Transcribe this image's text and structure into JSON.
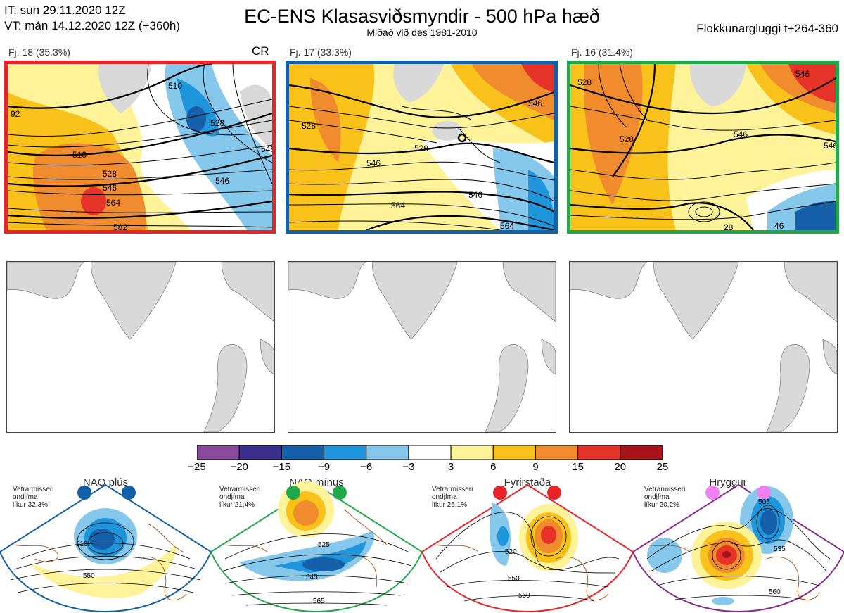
{
  "header": {
    "it_line": "IT: sun 29.11.2020 12Z",
    "vt_line": "VT: mán 14.12.2020 12Z  (+360h)",
    "title": "EC-ENS Klasasviðsmyndir - 500 hPa hæð",
    "subtitle": "Miðað við des 1981-2010",
    "window": "Flokkunargluggi t+264-360"
  },
  "clusters": [
    {
      "label": "Fj. 18 (35.3%)",
      "tag": "CR",
      "frame_color": "#e8242a",
      "contours": [
        "510",
        "528",
        "546",
        "564",
        "582",
        "92",
        "546",
        "528",
        "546",
        "510"
      ]
    },
    {
      "label": "Fj. 17 (33.3%)",
      "tag": "",
      "frame_color": "#1160a8",
      "contours": [
        "528",
        "546",
        "528",
        "546",
        "564",
        "546",
        "564"
      ]
    },
    {
      "label": "Fj. 16 (31.4%)",
      "tag": "",
      "frame_color": "#22a84a",
      "contours": [
        "528",
        "528",
        "546",
        "546",
        "546",
        "28",
        "46"
      ]
    }
  ],
  "colorbar": {
    "colors": [
      "#8a4a9e",
      "#3a2f8f",
      "#1560a8",
      "#1f95db",
      "#86c8ec",
      "#ffffff",
      "#fff39a",
      "#f9c21a",
      "#f08b2e",
      "#e6332a",
      "#a8141a"
    ],
    "labels": [
      "−25",
      "−20",
      "−15",
      "−9",
      "−6",
      "−3",
      "3",
      "6",
      "9",
      "15",
      "20",
      "25"
    ]
  },
  "regimes": [
    {
      "name": "NAO plús",
      "note": [
        "Vetrarmisseri",
        "ondjfma",
        "líkur 32,3%"
      ],
      "color": "#1160a8",
      "dot": "#1160a8",
      "contours": [
        "510",
        "550"
      ]
    },
    {
      "name": "NAO mínus",
      "note": [
        "Vetrarmisseri",
        "ondjfma",
        "líkur 21,4%"
      ],
      "color": "#22a84a",
      "dot": "#22a84a",
      "contours": [
        "525",
        "545",
        "565"
      ]
    },
    {
      "name": "Fyrirstaða",
      "note": [
        "Vetrarmisseri",
        "ondjfma",
        "líkur 26,1%"
      ],
      "color": "#e8242a",
      "dot": "#e8242a",
      "contours": [
        "520",
        "550",
        "560"
      ]
    },
    {
      "name": "Hryggur",
      "note": [
        "Vetrarmisseri",
        "ondjfma",
        "líkur 20,2%"
      ],
      "color": "#8a2a8e",
      "dot": "#ee82ee",
      "contours": [
        "505",
        "535",
        "560"
      ]
    }
  ]
}
